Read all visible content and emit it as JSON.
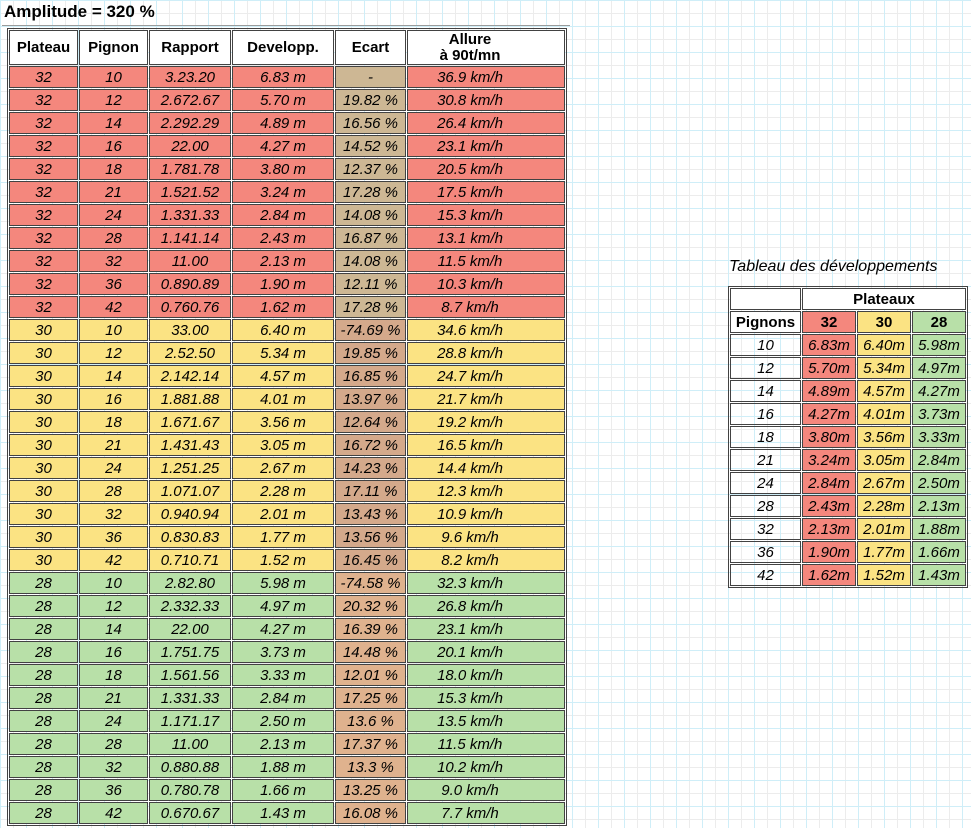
{
  "page": {
    "title": "Amplitude = 320 %"
  },
  "colors": {
    "salmon": "#F4877D",
    "yellow": "#FBE383",
    "green": "#B8E0A8",
    "ecart_32": "#CDB794",
    "ecart_30": "#D4A98B",
    "ecart_28": "#DFB28E",
    "header_bg": "#FFFFFF",
    "border": "#424242"
  },
  "main_table": {
    "headers": {
      "plateau": "Plateau",
      "pignon": "Pignon",
      "rapport": "Rapport",
      "developp": "Developp.",
      "ecart": "Ecart",
      "allure_line1": "Allure",
      "allure_line2": "à 90t/mn"
    },
    "rows": [
      {
        "group": "32",
        "plateau": "32",
        "pignon": "10",
        "rapport": "3.23.20",
        "developp": "6.83 m",
        "ecart": "-",
        "allure": "36.9 km/h"
      },
      {
        "group": "32",
        "plateau": "32",
        "pignon": "12",
        "rapport": "2.672.67",
        "developp": "5.70 m",
        "ecart": "19.82 %",
        "allure": "30.8 km/h"
      },
      {
        "group": "32",
        "plateau": "32",
        "pignon": "14",
        "rapport": "2.292.29",
        "developp": "4.89 m",
        "ecart": "16.56 %",
        "allure": "26.4 km/h"
      },
      {
        "group": "32",
        "plateau": "32",
        "pignon": "16",
        "rapport": "22.00",
        "developp": "4.27 m",
        "ecart": "14.52 %",
        "allure": "23.1 km/h"
      },
      {
        "group": "32",
        "plateau": "32",
        "pignon": "18",
        "rapport": "1.781.78",
        "developp": "3.80 m",
        "ecart": "12.37 %",
        "allure": "20.5 km/h"
      },
      {
        "group": "32",
        "plateau": "32",
        "pignon": "21",
        "rapport": "1.521.52",
        "developp": "3.24 m",
        "ecart": "17.28 %",
        "allure": "17.5 km/h"
      },
      {
        "group": "32",
        "plateau": "32",
        "pignon": "24",
        "rapport": "1.331.33",
        "developp": "2.84 m",
        "ecart": "14.08 %",
        "allure": "15.3 km/h"
      },
      {
        "group": "32",
        "plateau": "32",
        "pignon": "28",
        "rapport": "1.141.14",
        "developp": "2.43 m",
        "ecart": "16.87 %",
        "allure": "13.1 km/h"
      },
      {
        "group": "32",
        "plateau": "32",
        "pignon": "32",
        "rapport": "11.00",
        "developp": "2.13 m",
        "ecart": "14.08 %",
        "allure": "11.5 km/h"
      },
      {
        "group": "32",
        "plateau": "32",
        "pignon": "36",
        "rapport": "0.890.89",
        "developp": "1.90 m",
        "ecart": "12.11 %",
        "allure": "10.3 km/h"
      },
      {
        "group": "32",
        "plateau": "32",
        "pignon": "42",
        "rapport": "0.760.76",
        "developp": "1.62 m",
        "ecart": "17.28 %",
        "allure": "8.7 km/h"
      },
      {
        "group": "30",
        "plateau": "30",
        "pignon": "10",
        "rapport": "33.00",
        "developp": "6.40 m",
        "ecart": "-74.69 %",
        "allure": "34.6 km/h"
      },
      {
        "group": "30",
        "plateau": "30",
        "pignon": "12",
        "rapport": "2.52.50",
        "developp": "5.34 m",
        "ecart": "19.85 %",
        "allure": "28.8 km/h"
      },
      {
        "group": "30",
        "plateau": "30",
        "pignon": "14",
        "rapport": "2.142.14",
        "developp": "4.57 m",
        "ecart": "16.85 %",
        "allure": "24.7 km/h"
      },
      {
        "group": "30",
        "plateau": "30",
        "pignon": "16",
        "rapport": "1.881.88",
        "developp": "4.01 m",
        "ecart": "13.97 %",
        "allure": "21.7 km/h"
      },
      {
        "group": "30",
        "plateau": "30",
        "pignon": "18",
        "rapport": "1.671.67",
        "developp": "3.56 m",
        "ecart": "12.64 %",
        "allure": "19.2 km/h"
      },
      {
        "group": "30",
        "plateau": "30",
        "pignon": "21",
        "rapport": "1.431.43",
        "developp": "3.05 m",
        "ecart": "16.72 %",
        "allure": "16.5 km/h"
      },
      {
        "group": "30",
        "plateau": "30",
        "pignon": "24",
        "rapport": "1.251.25",
        "developp": "2.67 m",
        "ecart": "14.23 %",
        "allure": "14.4 km/h"
      },
      {
        "group": "30",
        "plateau": "30",
        "pignon": "28",
        "rapport": "1.071.07",
        "developp": "2.28 m",
        "ecart": "17.11 %",
        "allure": "12.3 km/h"
      },
      {
        "group": "30",
        "plateau": "30",
        "pignon": "32",
        "rapport": "0.940.94",
        "developp": "2.01 m",
        "ecart": "13.43 %",
        "allure": "10.9 km/h"
      },
      {
        "group": "30",
        "plateau": "30",
        "pignon": "36",
        "rapport": "0.830.83",
        "developp": "1.77 m",
        "ecart": "13.56 %",
        "allure": "9.6 km/h"
      },
      {
        "group": "30",
        "plateau": "30",
        "pignon": "42",
        "rapport": "0.710.71",
        "developp": "1.52 m",
        "ecart": "16.45 %",
        "allure": "8.2 km/h"
      },
      {
        "group": "28",
        "plateau": "28",
        "pignon": "10",
        "rapport": "2.82.80",
        "developp": "5.98 m",
        "ecart": "-74.58 %",
        "allure": "32.3 km/h"
      },
      {
        "group": "28",
        "plateau": "28",
        "pignon": "12",
        "rapport": "2.332.33",
        "developp": "4.97 m",
        "ecart": "20.32 %",
        "allure": "26.8 km/h"
      },
      {
        "group": "28",
        "plateau": "28",
        "pignon": "14",
        "rapport": "22.00",
        "developp": "4.27 m",
        "ecart": "16.39 %",
        "allure": "23.1 km/h"
      },
      {
        "group": "28",
        "plateau": "28",
        "pignon": "16",
        "rapport": "1.751.75",
        "developp": "3.73 m",
        "ecart": "14.48 %",
        "allure": "20.1 km/h"
      },
      {
        "group": "28",
        "plateau": "28",
        "pignon": "18",
        "rapport": "1.561.56",
        "developp": "3.33 m",
        "ecart": "12.01 %",
        "allure": "18.0 km/h"
      },
      {
        "group": "28",
        "plateau": "28",
        "pignon": "21",
        "rapport": "1.331.33",
        "developp": "2.84 m",
        "ecart": "17.25 %",
        "allure": "15.3 km/h"
      },
      {
        "group": "28",
        "plateau": "28",
        "pignon": "24",
        "rapport": "1.171.17",
        "developp": "2.50 m",
        "ecart": "13.6 %",
        "allure": "13.5 km/h"
      },
      {
        "group": "28",
        "plateau": "28",
        "pignon": "28",
        "rapport": "11.00",
        "developp": "2.13 m",
        "ecart": "17.37 %",
        "allure": "11.5 km/h"
      },
      {
        "group": "28",
        "plateau": "28",
        "pignon": "32",
        "rapport": "0.880.88",
        "developp": "1.88 m",
        "ecart": "13.3 %",
        "allure": "10.2 km/h"
      },
      {
        "group": "28",
        "plateau": "28",
        "pignon": "36",
        "rapport": "0.780.78",
        "developp": "1.66 m",
        "ecart": "13.25 %",
        "allure": "9.0 km/h"
      },
      {
        "group": "28",
        "plateau": "28",
        "pignon": "42",
        "rapport": "0.670.67",
        "developp": "1.43 m",
        "ecart": "16.08 %",
        "allure": "7.7 km/h"
      }
    ]
  },
  "side_table": {
    "title": "Tableau des développements",
    "plateaux_label": "Plateaux",
    "pignons_label": "Pignons",
    "plateau_cols": [
      "32",
      "30",
      "28"
    ],
    "rows": [
      {
        "pignon": "10",
        "d32": "6.83m",
        "d30": "6.40m",
        "d28": "5.98m"
      },
      {
        "pignon": "12",
        "d32": "5.70m",
        "d30": "5.34m",
        "d28": "4.97m"
      },
      {
        "pignon": "14",
        "d32": "4.89m",
        "d30": "4.57m",
        "d28": "4.27m"
      },
      {
        "pignon": "16",
        "d32": "4.27m",
        "d30": "4.01m",
        "d28": "3.73m"
      },
      {
        "pignon": "18",
        "d32": "3.80m",
        "d30": "3.56m",
        "d28": "3.33m"
      },
      {
        "pignon": "21",
        "d32": "3.24m",
        "d30": "3.05m",
        "d28": "2.84m"
      },
      {
        "pignon": "24",
        "d32": "2.84m",
        "d30": "2.67m",
        "d28": "2.50m"
      },
      {
        "pignon": "28",
        "d32": "2.43m",
        "d30": "2.28m",
        "d28": "2.13m"
      },
      {
        "pignon": "32",
        "d32": "2.13m",
        "d30": "2.01m",
        "d28": "1.88m"
      },
      {
        "pignon": "36",
        "d32": "1.90m",
        "d30": "1.77m",
        "d28": "1.66m"
      },
      {
        "pignon": "42",
        "d32": "1.62m",
        "d30": "1.52m",
        "d28": "1.43m"
      }
    ]
  }
}
